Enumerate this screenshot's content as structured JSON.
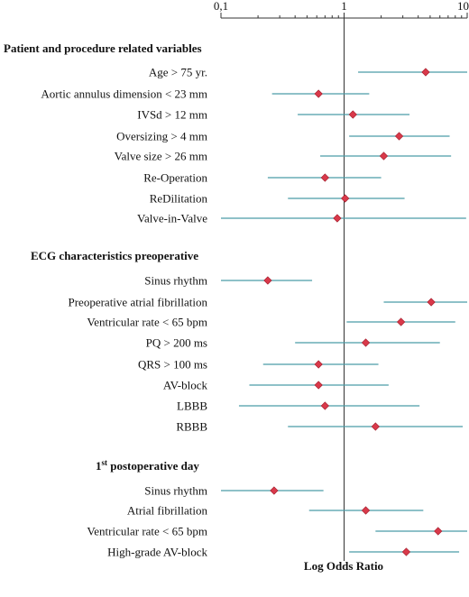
{
  "chart_data": {
    "type": "forest",
    "xlabel": "Log Odds Ratio",
    "xscale": "log",
    "xlim": [
      0.1,
      10
    ],
    "ticks": [
      {
        "value": 0.1,
        "label": "0,1"
      },
      {
        "value": 1,
        "label": "1"
      },
      {
        "value": 10,
        "label": "10"
      }
    ],
    "reference_line": 1,
    "colors": {
      "ci_line": "#4a9ca6",
      "marker": "#d9394a",
      "marker_stroke": "#9e1b2a",
      "axis": "#333333"
    },
    "groups": [
      {
        "title": "Patient and procedure related variables",
        "items": [
          {
            "label": "Age > 75 yr.",
            "or": 4.6,
            "lo": 1.3,
            "hi": 10
          },
          {
            "label": "Aortic annulus dimension < 23 mm",
            "or": 0.62,
            "lo": 0.26,
            "hi": 1.6
          },
          {
            "label": "IVSd > 12 mm",
            "or": 1.18,
            "lo": 0.42,
            "hi": 3.4
          },
          {
            "label": "Oversizing > 4 mm",
            "or": 2.8,
            "lo": 1.1,
            "hi": 7.2
          },
          {
            "label": "Valve size > 26 mm",
            "or": 2.1,
            "lo": 0.64,
            "hi": 7.4
          },
          {
            "label": "Re-Operation",
            "or": 0.7,
            "lo": 0.24,
            "hi": 2.0
          },
          {
            "label": "ReDilitation",
            "or": 1.02,
            "lo": 0.35,
            "hi": 3.1
          },
          {
            "label": "Valve-in-Valve",
            "or": 0.88,
            "lo": 0.1,
            "hi": 9.8
          }
        ]
      },
      {
        "title": "ECG characteristics preoperative",
        "items": [
          {
            "label": "Sinus rhythm",
            "or": 0.24,
            "lo": 0.1,
            "hi": 0.55
          },
          {
            "label": "Preoperative atrial fibrillation",
            "or": 5.1,
            "lo": 2.1,
            "hi": 10
          },
          {
            "label": "Ventricular rate < 65 bpm",
            "or": 2.9,
            "lo": 1.05,
            "hi": 8.0
          },
          {
            "label": "PQ > 200 ms",
            "or": 1.5,
            "lo": 0.4,
            "hi": 6.0
          },
          {
            "label": "QRS > 100 ms",
            "or": 0.62,
            "lo": 0.22,
            "hi": 1.9
          },
          {
            "label": "AV-block",
            "or": 0.62,
            "lo": 0.17,
            "hi": 2.3
          },
          {
            "label": "LBBB",
            "or": 0.7,
            "lo": 0.14,
            "hi": 4.1
          },
          {
            "label": "RBBB",
            "or": 1.8,
            "lo": 0.35,
            "hi": 9.2
          }
        ]
      },
      {
        "title": "1st postoperative day",
        "title_parts": {
          "number": "1",
          "superscript": "st",
          "rest": " postoperative day"
        },
        "items": [
          {
            "label": "Sinus rhythm",
            "or": 0.27,
            "lo": 0.1,
            "hi": 0.68
          },
          {
            "label": "Atrial fibrillation",
            "or": 1.5,
            "lo": 0.52,
            "hi": 4.4
          },
          {
            "label": "Ventricular rate < 65 bpm",
            "or": 5.8,
            "lo": 1.8,
            "hi": 10
          },
          {
            "label": "High-grade AV-block",
            "or": 3.2,
            "lo": 1.1,
            "hi": 8.6
          }
        ]
      }
    ]
  }
}
